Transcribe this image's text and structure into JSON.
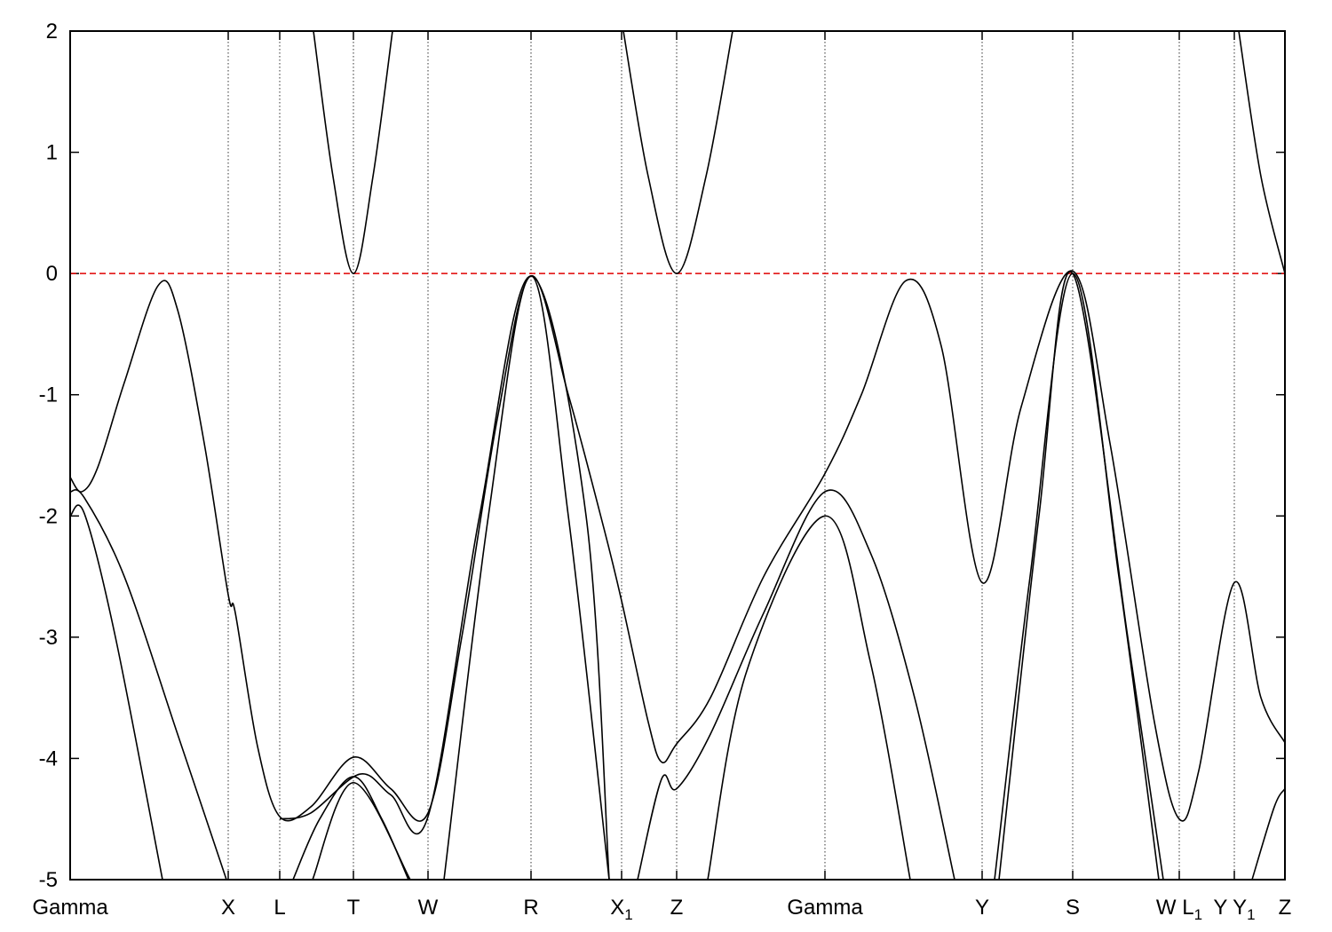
{
  "chart_data": {
    "type": "line",
    "color": "#000000",
    "reference_line": 0,
    "reference_color": "#e00000",
    "grid": true,
    "xlim": [
      0,
      13.68
    ],
    "ylim": [
      -5,
      2
    ],
    "yticks": [
      -5,
      -4,
      -3,
      -2,
      -1,
      0,
      1,
      2
    ],
    "xticks": [
      {
        "value": 0,
        "label": "Gamma"
      },
      {
        "value": 1.78,
        "label": "X"
      },
      {
        "value": 2.36,
        "label": "L"
      },
      {
        "value": 3.19,
        "label": "T"
      },
      {
        "value": 4.03,
        "label": "W"
      },
      {
        "value": 5.19,
        "label": "R"
      },
      {
        "value": 6.21,
        "label": "X1"
      },
      {
        "value": 6.83,
        "label": "Z"
      },
      {
        "value": 8.5,
        "label": "Gamma"
      },
      {
        "value": 10.27,
        "label": "Y"
      },
      {
        "value": 11.29,
        "label": "S"
      },
      {
        "value": 12.49,
        "label": "W L1"
      },
      {
        "value": 13.11,
        "label": "Y Y1"
      },
      {
        "value": 13.68,
        "label": "Z"
      }
    ],
    "series": [
      {
        "x": [
          0,
          0.13,
          0.31,
          0.61,
          0.99,
          1.21,
          1.51,
          1.78,
          1.86,
          2.11,
          2.36,
          2.71,
          3.19,
          3.61,
          4.03,
          4.41,
          4.81,
          5.19,
          5.61,
          6.01,
          6.21,
          6.51,
          6.66,
          6.83,
          7.21,
          7.81,
          8.5,
          8.91,
          9.41,
          9.81,
          10.27,
          10.71,
          11.29,
          11.71,
          12.21,
          12.49,
          12.71,
          13.11,
          13.41,
          13.68
        ],
        "values": [
          -1.68,
          -1.8,
          -1.6,
          -0.9,
          -0.1,
          -0.3,
          -1.4,
          -2.65,
          -2.8,
          -3.9,
          -4.48,
          -4.4,
          -3.99,
          -4.25,
          -4.45,
          -3.0,
          -1.2,
          -0.02,
          -1.0,
          -2.1,
          -2.7,
          -3.7,
          -4.03,
          -3.88,
          -3.5,
          -2.5,
          -1.65,
          -1.0,
          -0.06,
          -0.6,
          -2.55,
          -1.1,
          0.02,
          -1.4,
          -3.7,
          -4.5,
          -4.1,
          -2.55,
          -3.5,
          -3.87
        ]
      },
      {
        "x": [
          0,
          0.16,
          0.61,
          1.21,
          1.76
        ],
        "values": [
          -1.8,
          -1.85,
          -2.5,
          -3.8,
          -5
        ]
      },
      {
        "x": [
          0,
          0.16,
          0.51,
          1.04
        ],
        "values": [
          -2.0,
          -1.98,
          -3.0,
          -5
        ]
      },
      {
        "x": [
          2.36,
          2.71,
          3.26,
          3.61,
          4.03,
          4.61,
          5.19,
          5.81,
          6.07
        ],
        "values": [
          -4.5,
          -4.45,
          -4.13,
          -4.3,
          -4.48,
          -2.0,
          -0.02,
          -2.0,
          -5
        ]
      },
      {
        "x": [
          2.51,
          2.81,
          3.19,
          3.51,
          3.81
        ],
        "values": [
          -5,
          -4.5,
          -4.15,
          -4.5,
          -5
        ]
      },
      {
        "x": [
          2.73,
          3.19,
          3.83
        ],
        "values": [
          -5,
          -4.2,
          -5
        ]
      },
      {
        "x": [
          4.21,
          4.71,
          5.19,
          5.61,
          6.07
        ],
        "values": [
          -5,
          -2.0,
          -0.02,
          -2.0,
          -5
        ]
      },
      {
        "x": [
          6.39,
          6.66,
          6.83,
          7.21,
          7.81,
          8.5,
          9.01,
          9.51,
          9.96
        ],
        "values": [
          -5,
          -4.17,
          -4.25,
          -3.8,
          -2.8,
          -1.8,
          -2.3,
          -3.5,
          -5
        ]
      },
      {
        "x": [
          7.18,
          7.61,
          8.5,
          9.01,
          9.46
        ],
        "values": [
          -5,
          -3.3,
          -2.0,
          -3.2,
          -5
        ]
      },
      {
        "x": [
          10.41,
          10.81,
          11.29,
          11.81,
          12.26
        ],
        "values": [
          -5,
          -2.5,
          0,
          -2.5,
          -5
        ]
      },
      {
        "x": [
          10.46,
          10.91,
          11.29,
          11.91,
          12.31
        ],
        "values": [
          -5,
          -2.0,
          0,
          -3.0,
          -5
        ]
      },
      {
        "x": [
          13.31,
          13.56,
          13.68
        ],
        "values": [
          -5,
          -4.4,
          -4.25
        ]
      },
      {
        "x": [
          2.74,
          2.96,
          3.19,
          3.41,
          3.63
        ],
        "values": [
          2,
          0.8,
          0,
          0.8,
          2
        ]
      },
      {
        "x": [
          6.23,
          6.51,
          6.83,
          7.16,
          7.46
        ],
        "values": [
          2,
          0.8,
          0,
          0.8,
          2
        ]
      },
      {
        "x": [
          13.16,
          13.41,
          13.68
        ],
        "values": [
          2,
          0.8,
          0
        ]
      }
    ]
  }
}
